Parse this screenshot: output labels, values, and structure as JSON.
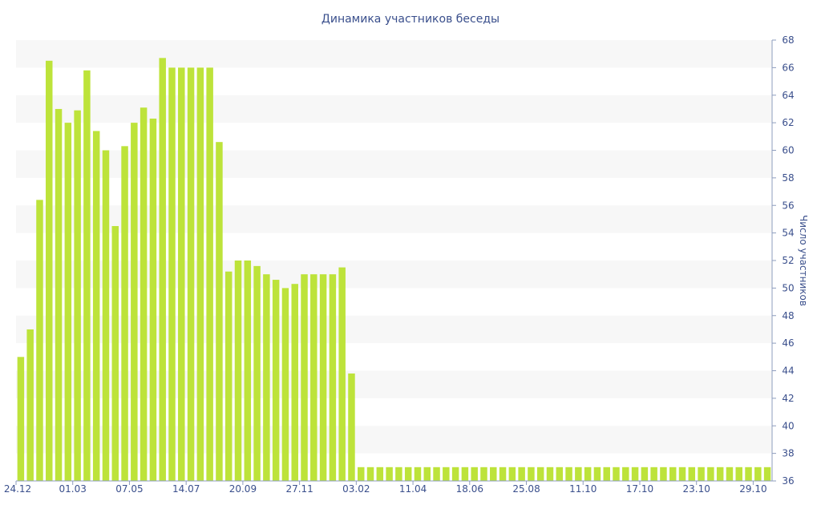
{
  "chart_data": {
    "type": "bar",
    "title": "Динамика участников беседы",
    "xlabel": "",
    "ylabel": "Число участников",
    "y_axis_side": "right",
    "ylim": [
      36,
      68
    ],
    "y_ticks": [
      36,
      38,
      40,
      42,
      44,
      46,
      48,
      50,
      52,
      54,
      56,
      58,
      60,
      62,
      64,
      66,
      68
    ],
    "grid": "alternating horizontal bands",
    "x_tick_labels": [
      {
        "index": 0,
        "label": "24.12"
      },
      {
        "index": 6,
        "label": "01.03"
      },
      {
        "index": 12,
        "label": "07.05"
      },
      {
        "index": 18,
        "label": "14.07"
      },
      {
        "index": 24,
        "label": "20.09"
      },
      {
        "index": 30,
        "label": "27.11"
      },
      {
        "index": 36,
        "label": "03.02"
      },
      {
        "index": 42,
        "label": "11.04"
      },
      {
        "index": 48,
        "label": "18.06"
      },
      {
        "index": 54,
        "label": "25.08"
      },
      {
        "index": 60,
        "label": "11.10"
      },
      {
        "index": 66,
        "label": "17.10"
      },
      {
        "index": 72,
        "label": "23.10"
      },
      {
        "index": 78,
        "label": "29.10"
      }
    ],
    "values": [
      45,
      47,
      56.4,
      66.5,
      63,
      62,
      62.9,
      65.8,
      61.4,
      60,
      54.5,
      60.3,
      62,
      63.1,
      62.3,
      66.7,
      66,
      66,
      66,
      66,
      66,
      60.6,
      51.2,
      52,
      52,
      51.6,
      51,
      50.6,
      50,
      50.3,
      51,
      51,
      51,
      51,
      51.5,
      43.8,
      37,
      37,
      37,
      37,
      37,
      37,
      37,
      37,
      37,
      37,
      37,
      37,
      37,
      37,
      37,
      37,
      37,
      37,
      37,
      37,
      37,
      37,
      37,
      37,
      37,
      37,
      37,
      37,
      37,
      37,
      37,
      37,
      37,
      37,
      37,
      37,
      37,
      37,
      37,
      37,
      37,
      37,
      37,
      37
    ],
    "colors": {
      "bar": "#bde33a",
      "band": "#f7f7f7",
      "text": "#3a4f8c",
      "axis": "#8d9cbd"
    }
  }
}
